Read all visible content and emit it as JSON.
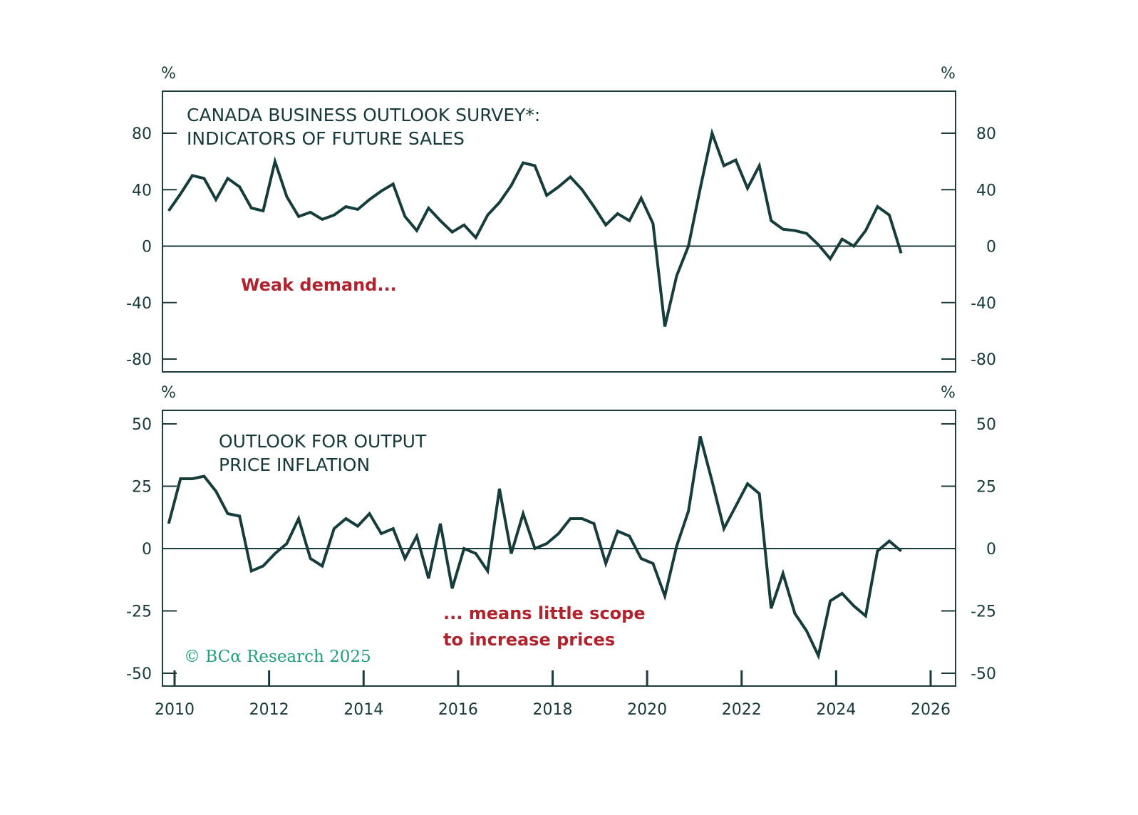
{
  "chart_data": [
    {
      "type": "line",
      "title": "CANADA BUSINESS OUTLOOK SURVEY*: INDICATORS OF FUTURE SALES",
      "title_lines": [
        "CANADA BUSINESS OUTLOOK SURVEY*:",
        "INDICATORS OF FUTURE SALES"
      ],
      "ylabel": "%",
      "ylabel_right": "%",
      "ylim": [
        -90,
        110
      ],
      "yticks": [
        80,
        40,
        0,
        -40,
        -80
      ],
      "ytick_labels": [
        "80",
        "40",
        "0",
        "-40",
        "-80"
      ],
      "grid": false,
      "zero_line": true,
      "annotation": "Weak demand...",
      "x_start": 2009.875,
      "x_step": 0.25,
      "series": [
        {
          "name": "Indicators of future sales",
          "values": [
            25,
            37,
            50,
            48,
            33,
            48,
            42,
            27,
            25,
            60,
            35,
            21,
            24,
            19,
            22,
            28,
            26,
            33,
            39,
            44,
            21,
            11,
            27,
            18,
            10,
            15,
            6,
            22,
            31,
            43,
            59,
            57,
            36,
            42,
            49,
            40,
            28,
            15,
            23,
            18,
            34,
            16,
            -57,
            -21,
            0,
            41,
            80,
            57,
            61,
            41,
            57,
            18,
            12,
            11,
            9,
            1,
            -9,
            5,
            0,
            11,
            28,
            22,
            -5
          ]
        }
      ]
    },
    {
      "type": "line",
      "title": "OUTLOOK FOR OUTPUT PRICE INFLATION",
      "title_lines": [
        "OUTLOOK FOR OUTPUT",
        "PRICE INFLATION"
      ],
      "ylabel": "%",
      "ylabel_right": "%",
      "ylim": [
        -55,
        56
      ],
      "yticks": [
        50,
        25,
        0,
        -25,
        -50
      ],
      "ytick_labels": [
        "50",
        "25",
        "0",
        "-25",
        "-50"
      ],
      "grid": false,
      "zero_line": true,
      "annotation_lines": [
        "... means little scope",
        "to increase prices"
      ],
      "x_start": 2009.875,
      "x_step": 0.25,
      "series": [
        {
          "name": "Output price inflation outlook",
          "values": [
            10,
            28,
            28,
            29,
            23,
            14,
            13,
            -9,
            -7,
            -2,
            2,
            12,
            -4,
            -7,
            8,
            12,
            9,
            14,
            6,
            8,
            -4,
            5,
            -12,
            10,
            -16,
            0,
            -2,
            -9,
            24,
            -2,
            14,
            0,
            2,
            6,
            12,
            12,
            10,
            -6,
            7,
            5,
            -4,
            -6,
            -19,
            1,
            15,
            45,
            27,
            8,
            17,
            26,
            22,
            -24,
            -10,
            -26,
            -33,
            -43,
            -21,
            -18,
            -23,
            -27,
            -1,
            3,
            -1
          ]
        }
      ]
    }
  ],
  "x_axis": {
    "range": [
      2009.8,
      2026.5
    ],
    "ticks": [
      2010,
      2012,
      2014,
      2016,
      2018,
      2020,
      2022,
      2024,
      2026
    ],
    "tick_labels": [
      "2010",
      "2012",
      "2014",
      "2016",
      "2018",
      "2020",
      "2022",
      "2024",
      "2026"
    ]
  },
  "copyright": "© BCα Research 2025",
  "colors": {
    "line": "#163c3c",
    "axis": "#1b3b3c",
    "text": "#17393a",
    "annotation": "#b0232d",
    "copyright": "#1fa07a"
  }
}
